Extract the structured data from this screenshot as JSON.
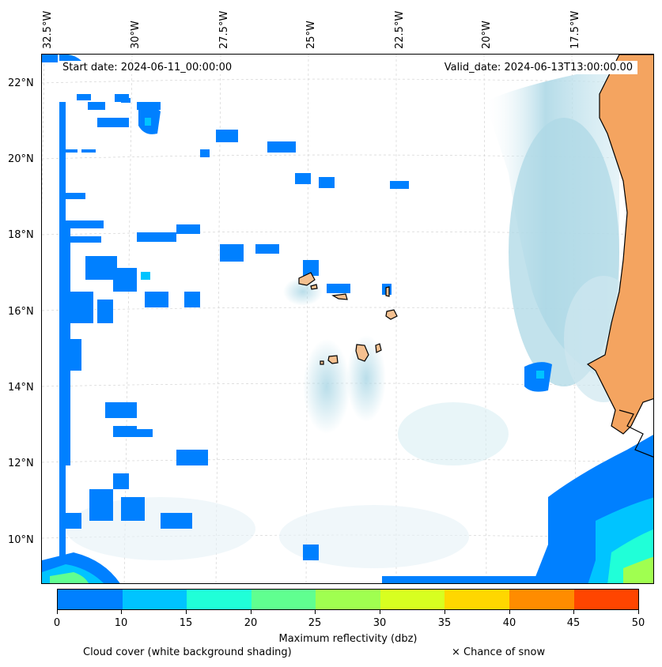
{
  "map": {
    "start_date": "Start date: 2024-06-11_00:00:00",
    "valid_date": "Valid_date: 2024-06-13T13:00:00.00",
    "longitude_labels": [
      "32.5°W",
      "30°W",
      "27.5°W",
      "25°W",
      "22.5°W",
      "20°W",
      "17.5°W"
    ],
    "latitude_labels": [
      "22°N",
      "20°N",
      "18°N",
      "16°N",
      "14°N",
      "12°N",
      "10°N"
    ],
    "colors": {
      "land": "#f4a460",
      "island": "#f4c090",
      "cloud": "#add8e6",
      "coast": "#000000"
    }
  },
  "colorbar": {
    "title": "Maximum reflectivity (dbz)",
    "ticks": [
      "0",
      "10",
      "15",
      "20",
      "25",
      "30",
      "35",
      "40",
      "45",
      "50"
    ],
    "colors": [
      "#0080ff",
      "#00c4ff",
      "#20ffd8",
      "#60ff90",
      "#a0ff50",
      "#d8ff20",
      "#ffd700",
      "#ff8c00",
      "#ff4500"
    ]
  },
  "legend": {
    "cloud_cover": "Cloud cover (white background shading)",
    "snow": "× Chance of snow"
  }
}
